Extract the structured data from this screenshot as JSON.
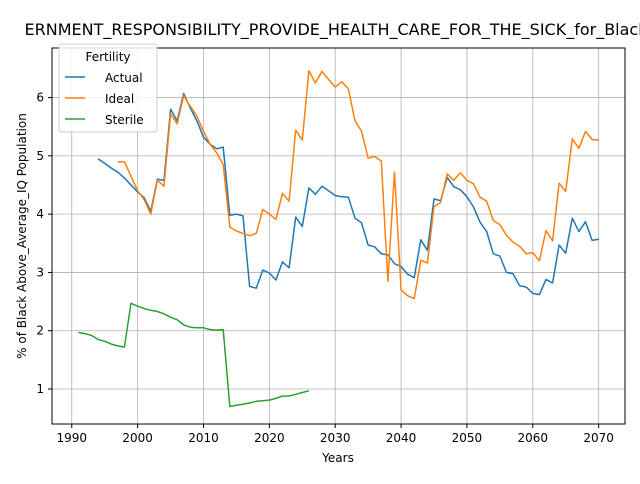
{
  "chart_data": {
    "type": "line",
    "title": "ERNMENT_RESPONSIBILITY_PROVIDE_HEALTH_CARE_FOR_THE_SICK_for_Black",
    "xlabel": "Years",
    "ylabel": "% of Black Above_Average_IQ Population",
    "xlim": [
      1987,
      2074
    ],
    "ylim": [
      0.4,
      6.85
    ],
    "xticks": [
      1990,
      2000,
      2010,
      2020,
      2030,
      2040,
      2050,
      2060,
      2070
    ],
    "yticks": [
      1,
      2,
      3,
      4,
      5,
      6
    ],
    "grid": true,
    "legend": {
      "title": "Fertility",
      "position": "top-left"
    },
    "series": [
      {
        "name": "Actual",
        "color": "#1f77b4",
        "points": [
          [
            1994,
            4.95
          ],
          [
            1995,
            4.87
          ],
          [
            1996,
            4.79
          ],
          [
            1997,
            4.72
          ],
          [
            1998,
            4.62
          ],
          [
            1999,
            4.5
          ],
          [
            2000,
            4.38
          ],
          [
            2001,
            4.28
          ],
          [
            2002,
            4.05
          ],
          [
            2003,
            4.6
          ],
          [
            2004,
            4.58
          ],
          [
            2005,
            5.8
          ],
          [
            2006,
            5.6
          ],
          [
            2007,
            6.07
          ],
          [
            2008,
            5.82
          ],
          [
            2009,
            5.6
          ],
          [
            2010,
            5.32
          ],
          [
            2011,
            5.2
          ],
          [
            2012,
            5.12
          ],
          [
            2013,
            5.15
          ],
          [
            2014,
            3.98
          ],
          [
            2015,
            4.0
          ],
          [
            2016,
            3.97
          ],
          [
            2017,
            2.76
          ],
          [
            2018,
            2.73
          ],
          [
            2019,
            3.04
          ],
          [
            2020,
            2.99
          ],
          [
            2021,
            2.87
          ],
          [
            2022,
            3.18
          ],
          [
            2023,
            3.08
          ],
          [
            2024,
            3.95
          ],
          [
            2025,
            3.79
          ],
          [
            2026,
            4.45
          ],
          [
            2027,
            4.34
          ],
          [
            2028,
            4.48
          ],
          [
            2029,
            4.4
          ],
          [
            2030,
            4.32
          ],
          [
            2031,
            4.3
          ],
          [
            2032,
            4.29
          ],
          [
            2033,
            3.93
          ],
          [
            2034,
            3.85
          ],
          [
            2035,
            3.47
          ],
          [
            2036,
            3.44
          ],
          [
            2037,
            3.32
          ],
          [
            2038,
            3.3
          ],
          [
            2039,
            3.15
          ],
          [
            2040,
            3.1
          ],
          [
            2041,
            2.97
          ],
          [
            2042,
            2.91
          ],
          [
            2043,
            3.56
          ],
          [
            2044,
            3.38
          ],
          [
            2045,
            4.26
          ],
          [
            2046,
            4.23
          ],
          [
            2047,
            4.63
          ],
          [
            2048,
            4.47
          ],
          [
            2049,
            4.42
          ],
          [
            2050,
            4.3
          ],
          [
            2051,
            4.12
          ],
          [
            2052,
            3.86
          ],
          [
            2053,
            3.7
          ],
          [
            2054,
            3.32
          ],
          [
            2055,
            3.28
          ],
          [
            2056,
            3.0
          ],
          [
            2057,
            2.98
          ],
          [
            2058,
            2.77
          ],
          [
            2059,
            2.75
          ],
          [
            2060,
            2.64
          ],
          [
            2061,
            2.62
          ],
          [
            2062,
            2.88
          ],
          [
            2063,
            2.82
          ],
          [
            2064,
            3.47
          ],
          [
            2065,
            3.33
          ],
          [
            2066,
            3.93
          ],
          [
            2067,
            3.7
          ],
          [
            2068,
            3.87
          ],
          [
            2069,
            3.55
          ],
          [
            2070,
            3.57
          ]
        ]
      },
      {
        "name": "Ideal",
        "color": "#ff7f0e",
        "points": [
          [
            1997,
            4.9
          ],
          [
            1998,
            4.9
          ],
          [
            1999,
            4.65
          ],
          [
            2000,
            4.4
          ],
          [
            2001,
            4.25
          ],
          [
            2002,
            4.0
          ],
          [
            2003,
            4.58
          ],
          [
            2004,
            4.48
          ],
          [
            2005,
            5.72
          ],
          [
            2006,
            5.55
          ],
          [
            2007,
            6.03
          ],
          [
            2008,
            5.85
          ],
          [
            2009,
            5.68
          ],
          [
            2010,
            5.42
          ],
          [
            2011,
            5.2
          ],
          [
            2012,
            5.05
          ],
          [
            2013,
            4.85
          ],
          [
            2014,
            3.78
          ],
          [
            2015,
            3.71
          ],
          [
            2016,
            3.67
          ],
          [
            2017,
            3.63
          ],
          [
            2018,
            3.67
          ],
          [
            2019,
            4.08
          ],
          [
            2020,
            4.0
          ],
          [
            2021,
            3.91
          ],
          [
            2022,
            4.36
          ],
          [
            2023,
            4.22
          ],
          [
            2024,
            5.44
          ],
          [
            2025,
            5.27
          ],
          [
            2026,
            6.46
          ],
          [
            2027,
            6.25
          ],
          [
            2028,
            6.45
          ],
          [
            2029,
            6.31
          ],
          [
            2030,
            6.18
          ],
          [
            2031,
            6.27
          ],
          [
            2032,
            6.15
          ],
          [
            2033,
            5.6
          ],
          [
            2034,
            5.42
          ],
          [
            2035,
            4.96
          ],
          [
            2036,
            4.99
          ],
          [
            2037,
            4.91
          ],
          [
            2038,
            2.85
          ],
          [
            2039,
            4.72
          ],
          [
            2040,
            2.7
          ],
          [
            2041,
            2.6
          ],
          [
            2042,
            2.55
          ],
          [
            2043,
            3.21
          ],
          [
            2044,
            3.16
          ],
          [
            2045,
            4.13
          ],
          [
            2046,
            4.2
          ],
          [
            2047,
            4.69
          ],
          [
            2048,
            4.58
          ],
          [
            2049,
            4.71
          ],
          [
            2050,
            4.58
          ],
          [
            2051,
            4.52
          ],
          [
            2052,
            4.29
          ],
          [
            2053,
            4.22
          ],
          [
            2054,
            3.89
          ],
          [
            2055,
            3.82
          ],
          [
            2056,
            3.64
          ],
          [
            2057,
            3.52
          ],
          [
            2058,
            3.45
          ],
          [
            2059,
            3.32
          ],
          [
            2060,
            3.34
          ],
          [
            2061,
            3.2
          ],
          [
            2062,
            3.72
          ],
          [
            2063,
            3.54
          ],
          [
            2064,
            4.53
          ],
          [
            2065,
            4.39
          ],
          [
            2066,
            5.29
          ],
          [
            2067,
            5.13
          ],
          [
            2068,
            5.42
          ],
          [
            2069,
            5.28
          ],
          [
            2070,
            5.27
          ]
        ]
      },
      {
        "name": "Sterile",
        "color": "#2ca02c",
        "points": [
          [
            1991,
            1.97
          ],
          [
            1992,
            1.95
          ],
          [
            1993,
            1.92
          ],
          [
            1994,
            1.85
          ],
          [
            1995,
            1.82
          ],
          [
            1996,
            1.77
          ],
          [
            1997,
            1.74
          ],
          [
            1998,
            1.72
          ],
          [
            1999,
            2.47
          ],
          [
            2000,
            2.42
          ],
          [
            2001,
            2.38
          ],
          [
            2002,
            2.35
          ],
          [
            2003,
            2.33
          ],
          [
            2004,
            2.29
          ],
          [
            2005,
            2.23
          ],
          [
            2006,
            2.19
          ],
          [
            2007,
            2.1
          ],
          [
            2008,
            2.06
          ],
          [
            2009,
            2.05
          ],
          [
            2010,
            2.05
          ],
          [
            2011,
            2.02
          ],
          [
            2012,
            2.01
          ],
          [
            2013,
            2.02
          ],
          [
            2014,
            0.7
          ],
          [
            2015,
            0.72
          ],
          [
            2016,
            0.74
          ],
          [
            2017,
            0.76
          ],
          [
            2018,
            0.79
          ],
          [
            2019,
            0.8
          ],
          [
            2020,
            0.81
          ],
          [
            2021,
            0.84
          ],
          [
            2022,
            0.88
          ],
          [
            2023,
            0.88
          ],
          [
            2024,
            0.91
          ],
          [
            2025,
            0.94
          ],
          [
            2026,
            0.97
          ]
        ]
      }
    ]
  }
}
